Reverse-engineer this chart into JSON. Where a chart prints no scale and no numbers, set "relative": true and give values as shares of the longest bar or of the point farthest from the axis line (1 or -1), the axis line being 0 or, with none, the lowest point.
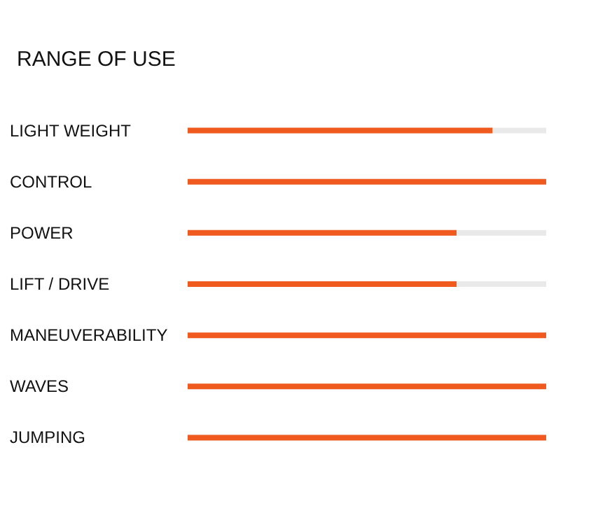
{
  "chart_data": {
    "type": "bar",
    "orientation": "horizontal",
    "relative": true,
    "title": "RANGE OF USE",
    "categories": [
      "LIGHT WEIGHT",
      "CONTROL",
      "POWER",
      "LIFT / DRIVE",
      "MANEUVERABILITY",
      "WAVES",
      "JUMPING"
    ],
    "values": [
      0.85,
      1,
      0.75,
      0.75,
      1,
      1,
      1
    ],
    "color": "#f05a1e"
  }
}
